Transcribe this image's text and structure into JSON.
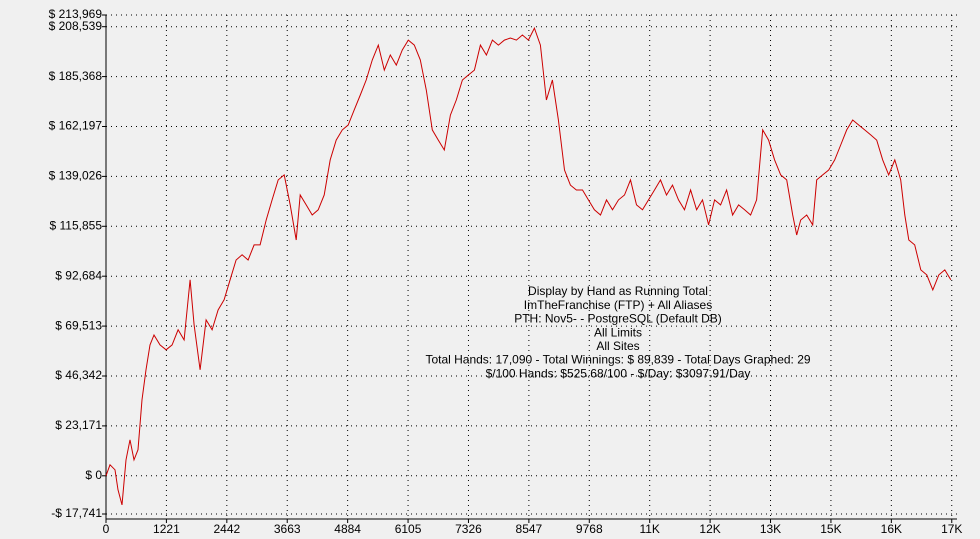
{
  "chart_data": {
    "type": "line",
    "color": "#cc0000",
    "grid": true,
    "xlim": [
      0,
      17200
    ],
    "ylim": [
      -17741,
      213969
    ],
    "xticks": [
      0,
      1221,
      2442,
      3663,
      4884,
      6105,
      7326,
      8547,
      9768,
      {
        "value": 10989,
        "label": "11K"
      },
      {
        "value": 12210,
        "label": "12K"
      },
      {
        "value": 13431,
        "label": "13K"
      },
      {
        "value": 14652,
        "label": "15K"
      },
      {
        "value": 15873,
        "label": "16K"
      },
      {
        "value": 17094,
        "label": "17K"
      }
    ],
    "yticks": [
      {
        "value": -17741,
        "label": "-$ 17,741"
      },
      {
        "value": 0,
        "label": "$ 0"
      },
      {
        "value": 23171,
        "label": "$ 23,171"
      },
      {
        "value": 46342,
        "label": "$ 46,342"
      },
      {
        "value": 69513,
        "label": "$ 69,513"
      },
      {
        "value": 92684,
        "label": "$ 92,684"
      },
      {
        "value": 115855,
        "label": "$ 115,855"
      },
      {
        "value": 139026,
        "label": "$ 139,026"
      },
      {
        "value": 162197,
        "label": "$ 162,197"
      },
      {
        "value": 185368,
        "label": "$ 185,368"
      },
      {
        "value": 208539,
        "label": "$ 208,539"
      },
      {
        "value": 213969,
        "label": "$ 213,969"
      }
    ],
    "annotation": [
      "Display by Hand as Running Total",
      "ImTheFranchise (FTP) + All Aliases",
      "PTH: Nov5- - PostgreSQL (Default DB)",
      "All Limits",
      "All Sites",
      "Total Hands: 17,090 - Total Winnings: $ 89,839 - Total Days Graphed: 29",
      "$/100 Hands: $525.68/100 - $/Day: $3097.91/Day"
    ],
    "x": [
      0,
      81,
      182,
      243,
      324,
      405,
      485,
      566,
      647,
      728,
      809,
      890,
      971,
      1092,
      1214,
      1335,
      1457,
      1578,
      1699,
      1780,
      1902,
      2023,
      2144,
      2266,
      2387,
      2508,
      2630,
      2751,
      2872,
      2994,
      3115,
      3237,
      3358,
      3480,
      3601,
      3722,
      3844,
      3925,
      4046,
      4168,
      4289,
      4410,
      4532,
      4653,
      4775,
      4896,
      5017,
      5139,
      5260,
      5382,
      5503,
      5625,
      5746,
      5867,
      5989,
      6110,
      6231,
      6353,
      6474,
      6596,
      6717,
      6838,
      6960,
      7081,
      7203,
      7324,
      7445,
      7567,
      7688,
      7809,
      7931,
      8052,
      8174,
      8295,
      8416,
      8537,
      8659,
      8780,
      8902,
      9023,
      9144,
      9266,
      9387,
      9508,
      9630,
      9751,
      9872,
      9994,
      10115,
      10237,
      10358,
      10479,
      10601,
      10722,
      10843,
      10965,
      11086,
      11208,
      11329,
      11450,
      11572,
      11693,
      11815,
      11936,
      12057,
      12179,
      12300,
      12422,
      12543,
      12664,
      12786,
      12907,
      13029,
      13150,
      13272,
      13393,
      13514,
      13636,
      13757,
      13879,
      13960,
      14040,
      14162,
      14283,
      14364,
      14485,
      14606,
      14728,
      14849,
      14971,
      15092,
      15213,
      15335,
      15456,
      15578,
      15699,
      15820,
      15942,
      16063,
      16144,
      16225,
      16346,
      16468,
      16589,
      16710,
      16832,
      16953,
      17074
    ],
    "values": [
      0,
      5100,
      2800,
      -6500,
      -13500,
      7400,
      16700,
      7400,
      12100,
      35300,
      49200,
      60800,
      65400,
      60800,
      58500,
      60800,
      67800,
      63100,
      91000,
      70100,
      49200,
      72400,
      67800,
      77000,
      81700,
      91000,
      100200,
      102600,
      100200,
      107200,
      107200,
      118800,
      128100,
      137400,
      139700,
      125800,
      109500,
      130400,
      125800,
      121100,
      123500,
      130400,
      146700,
      155900,
      160600,
      162900,
      169900,
      176800,
      183800,
      193100,
      200000,
      188400,
      195400,
      190700,
      197700,
      202300,
      200000,
      193100,
      179100,
      160600,
      155900,
      151300,
      167500,
      174500,
      183800,
      186100,
      188400,
      200000,
      195400,
      202300,
      200000,
      202300,
      203300,
      202300,
      204700,
      202300,
      207900,
      200000,
      174500,
      183800,
      165200,
      142000,
      135000,
      132700,
      132700,
      128100,
      123500,
      121100,
      128100,
      123500,
      128100,
      130400,
      137400,
      125800,
      123500,
      128100,
      132700,
      137400,
      130400,
      135000,
      128100,
      123500,
      132700,
      123500,
      128100,
      116500,
      128100,
      125800,
      132700,
      121100,
      125800,
      123500,
      121100,
      128100,
      160600,
      155900,
      146700,
      139700,
      137400,
      121100,
      111800,
      118800,
      121100,
      116500,
      137400,
      139700,
      142000,
      146700,
      153600,
      160600,
      165200,
      162900,
      160600,
      158300,
      155900,
      146700,
      139700,
      146700,
      137400,
      121100,
      109500,
      107200,
      95600,
      93300,
      86300,
      93300,
      95600,
      91000
    ]
  }
}
